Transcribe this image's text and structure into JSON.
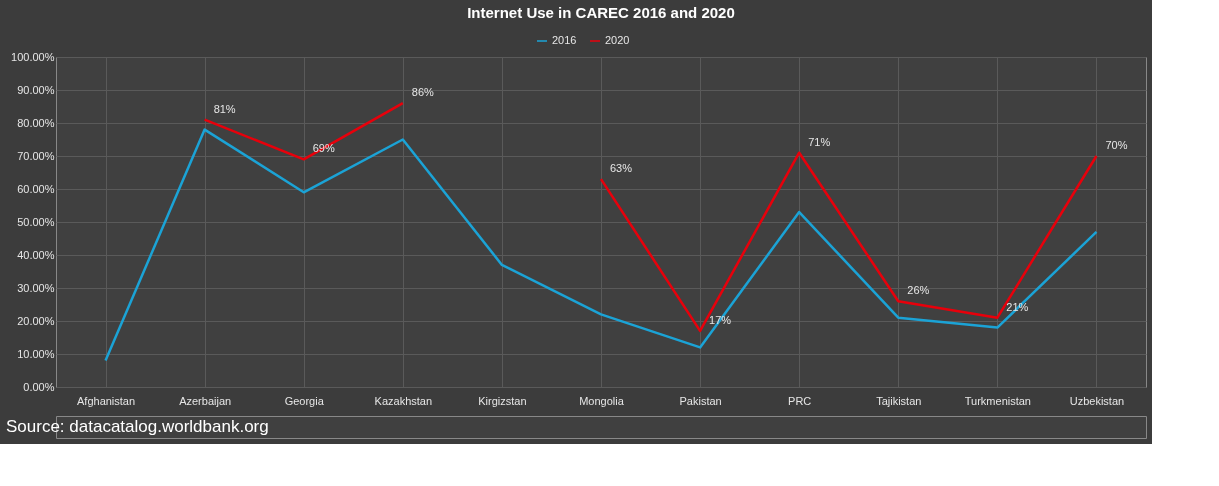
{
  "chart_data": {
    "type": "line",
    "title": "Internet Use in CAREC 2016 and 2020",
    "categories": [
      "Afghanistan",
      "Azerbaijan",
      "Georgia",
      "Kazakhstan",
      "Kirgizstan",
      "Mongolia",
      "Pakistan",
      "PRC",
      "Tajikistan",
      "Turkmenistan",
      "Uzbekistan"
    ],
    "series": [
      {
        "name": "2016",
        "color": "#1ba3d6",
        "values": [
          8,
          78,
          59,
          75,
          37,
          22,
          12,
          53,
          21,
          18,
          47
        ]
      },
      {
        "name": "2020",
        "color": "#e8000b",
        "values": [
          null,
          81,
          69,
          86,
          null,
          63,
          17,
          71,
          26,
          21,
          70
        ],
        "value_labels": [
          null,
          "81%",
          "69%",
          "86%",
          null,
          "63%",
          "17%",
          "71%",
          "26%",
          "21%",
          "70%"
        ]
      }
    ],
    "ylim": [
      0,
      100
    ],
    "yticks": [
      {
        "value": 0,
        "label": "0.00%"
      },
      {
        "value": 10,
        "label": "10.00%"
      },
      {
        "value": 20,
        "label": "20.00%"
      },
      {
        "value": 30,
        "label": "30.00%"
      },
      {
        "value": 40,
        "label": "40.00%"
      },
      {
        "value": 50,
        "label": "50.00%"
      },
      {
        "value": 60,
        "label": "60.00%"
      },
      {
        "value": 70,
        "label": "70.00%"
      },
      {
        "value": 80,
        "label": "80.00%"
      },
      {
        "value": 90,
        "label": "90.00%"
      },
      {
        "value": 100,
        "label": "100.00%"
      }
    ],
    "grid": true,
    "legend": "top",
    "marker": "none",
    "line_style": "solid",
    "annotations": [
      "Source: datacatalog.worldbank.org"
    ]
  }
}
